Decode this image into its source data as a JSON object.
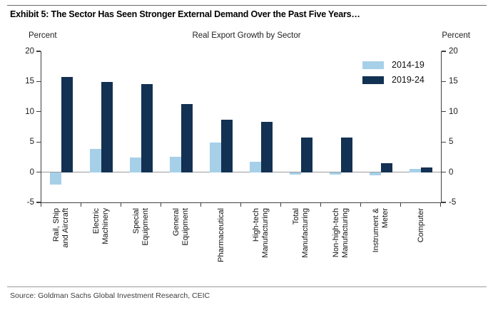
{
  "header": {
    "title": "Exhibit 5: The Sector Has Seen Stronger External Demand Over the Past Five Years…"
  },
  "chart": {
    "title": "Real Export Growth by Sector",
    "left_axis_unit": "Percent",
    "right_axis_unit": "Percent"
  },
  "chart_data": {
    "type": "bar",
    "title": "Real Export Growth by Sector",
    "categories": [
      "Rail, Ship and Aircraft",
      "Electric Machinery",
      "Special Equipment",
      "General Equipment",
      "Pharmaceutical",
      "High-tech Manufacturing",
      "Total Manufacturing",
      "Non-high-tech Manufacturing",
      "Instrument & Meter",
      "Computer"
    ],
    "category_label_lines": [
      [
        "Rail, Ship",
        "and Aircraft"
      ],
      [
        "Electric",
        "Machinery"
      ],
      [
        "Special",
        "Equipment"
      ],
      [
        "General",
        "Equipment"
      ],
      [
        "Pharmaceutical"
      ],
      [
        "High-tech",
        "Manufacturing"
      ],
      [
        "Total",
        "Manufacturing"
      ],
      [
        "Non-high-tech",
        "Manufacturing"
      ],
      [
        "Instrument &",
        "Meter"
      ],
      [
        "Computer"
      ]
    ],
    "series": [
      {
        "name": "2014-19",
        "color": "#a6d0e8",
        "values": [
          -2.0,
          3.9,
          2.4,
          2.6,
          4.9,
          1.7,
          -0.4,
          -0.4,
          -0.5,
          0.6
        ]
      },
      {
        "name": "2019-24",
        "color": "#133152",
        "values": [
          15.8,
          14.9,
          14.6,
          11.3,
          8.7,
          8.3,
          5.7,
          5.7,
          1.5,
          0.8
        ]
      }
    ],
    "ylim": [
      -5,
      20
    ],
    "yticks": [
      20,
      15,
      10,
      5,
      0,
      -5
    ],
    "unit": "Percent",
    "grid": false,
    "zero_line": true,
    "legend_position": "top-right"
  },
  "footer": {
    "source": "Source: Goldman Sachs Global Investment Research, CEIC"
  }
}
